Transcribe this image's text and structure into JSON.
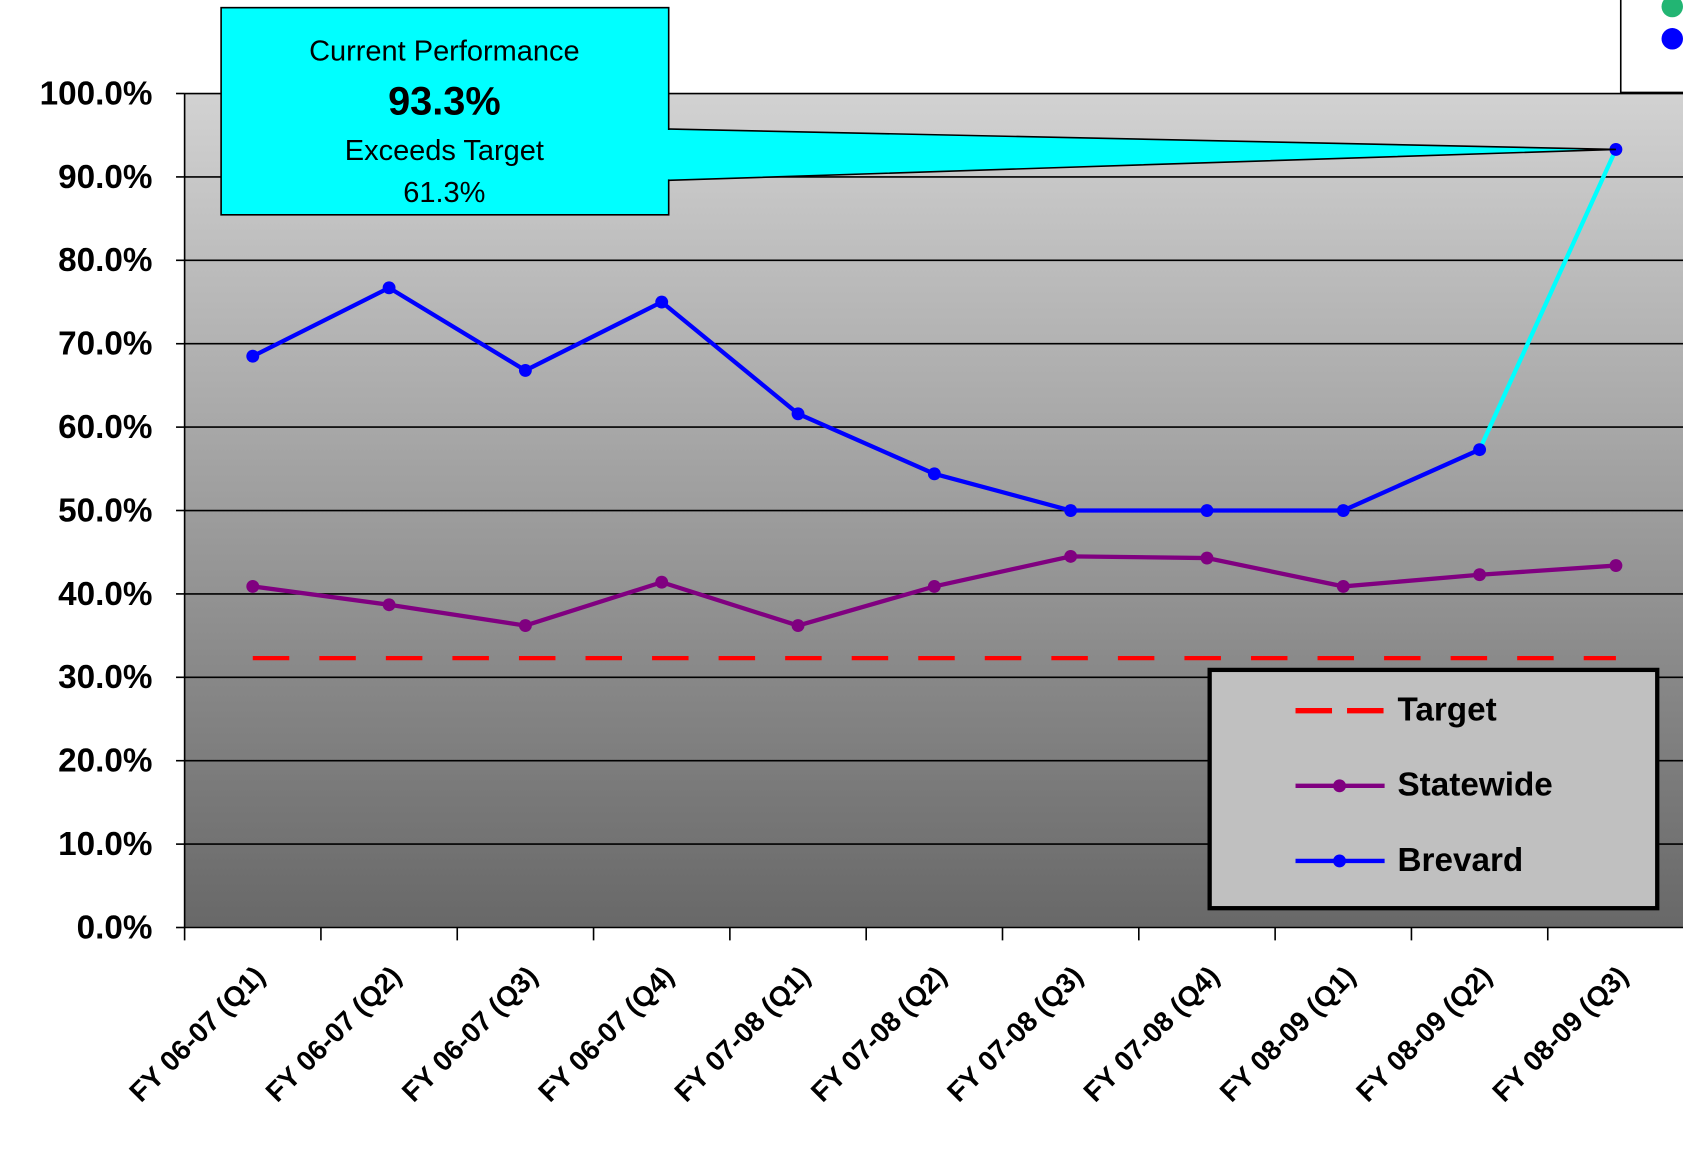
{
  "chart_data": {
    "type": "line",
    "categories": [
      "FY 06-07 (Q1)",
      "FY 06-07 (Q2)",
      "FY 06-07 (Q3)",
      "FY 06-07 (Q4)",
      "FY 07-08 (Q1)",
      "FY 07-08 (Q2)",
      "FY 07-08 (Q3)",
      "FY 07-08 (Q4)",
      "FY 08-09 (Q1)",
      "FY 08-09 (Q2)",
      "FY 08-09 (Q3)"
    ],
    "series": [
      {
        "name": "Target",
        "color": "#ff0000",
        "dashed": true,
        "markers": false,
        "values": [
          32.3,
          32.3,
          32.3,
          32.3,
          32.3,
          32.3,
          32.3,
          32.3,
          32.3,
          32.3,
          32.3
        ]
      },
      {
        "name": "Statewide",
        "color": "#800080",
        "markers": true,
        "values": [
          40.9,
          38.7,
          36.2,
          41.4,
          36.2,
          40.9,
          44.5,
          44.3,
          40.9,
          42.3,
          43.4
        ]
      },
      {
        "name": "Brevard",
        "color": "#0000ff",
        "markers": true,
        "last_segment_color": "#00ffff",
        "values": [
          68.5,
          76.7,
          66.8,
          75.0,
          61.6,
          54.4,
          50.0,
          50.0,
          50.0,
          57.3,
          93.3
        ]
      }
    ],
    "ylim": [
      0,
      100
    ],
    "yticks": [
      {
        "value": 0,
        "label": "0.0%"
      },
      {
        "value": 10,
        "label": "10.0%"
      },
      {
        "value": 20,
        "label": "20.0%"
      },
      {
        "value": 30,
        "label": "30.0%"
      },
      {
        "value": 40,
        "label": "40.0%"
      },
      {
        "value": 50,
        "label": "50.0%"
      },
      {
        "value": 60,
        "label": "60.0%"
      },
      {
        "value": 70,
        "label": "70.0%"
      },
      {
        "value": 80,
        "label": "80.0%"
      },
      {
        "value": 90,
        "label": "90.0%"
      },
      {
        "value": 100,
        "label": "100.0%"
      }
    ],
    "grid": true,
    "legend": "bottom-right",
    "callout": {
      "title": "Current Performance",
      "value": "93.3%",
      "status": "Exceeds Target",
      "note": "61.3%",
      "color": "#00ffff"
    }
  }
}
